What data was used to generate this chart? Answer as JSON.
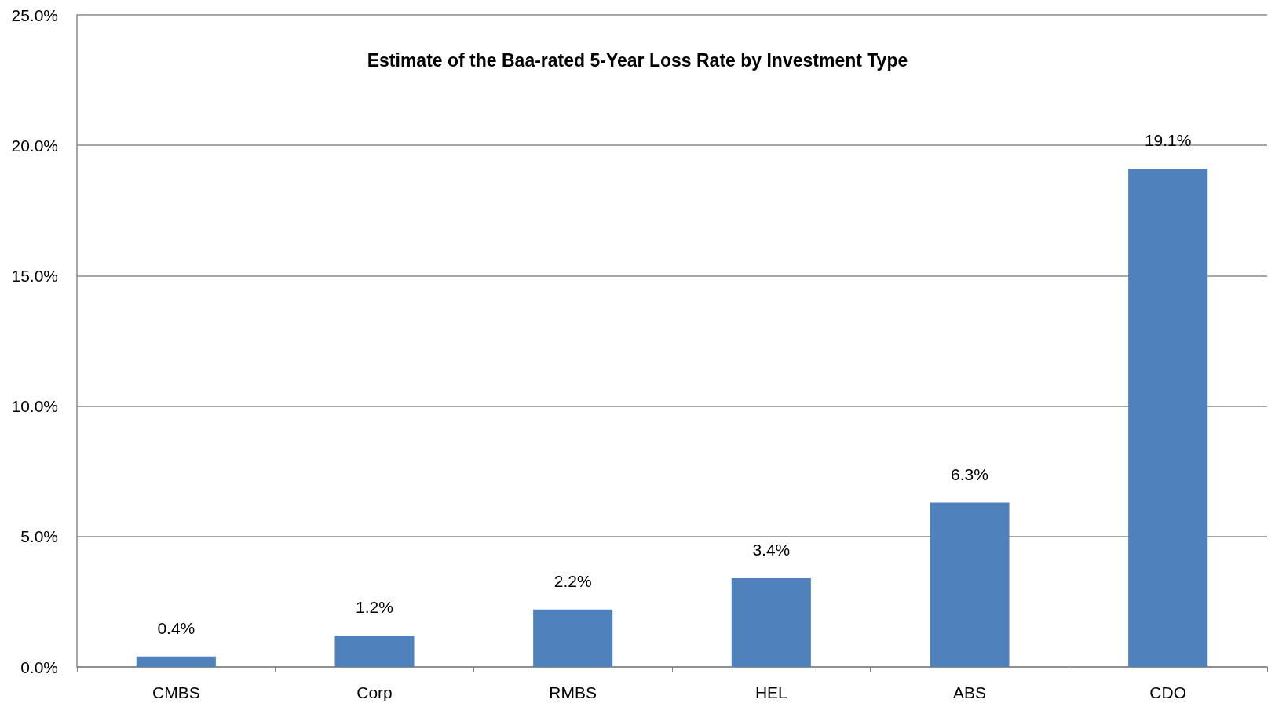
{
  "chart_data": {
    "type": "bar",
    "title": "Estimate of the Baa-rated 5-Year Loss Rate by Investment Type",
    "categories": [
      "CMBS",
      "Corp",
      "RMBS",
      "HEL",
      "ABS",
      "CDO"
    ],
    "values": [
      0.4,
      1.2,
      2.2,
      3.4,
      6.3,
      19.1
    ],
    "value_labels": [
      "0.4%",
      "1.2%",
      "2.2%",
      "3.4%",
      "6.3%",
      "19.1%"
    ],
    "color": "#4f81bd",
    "ylim": [
      0,
      25
    ],
    "yticks": [
      {
        "value": 0,
        "label": "0.0%"
      },
      {
        "value": 5,
        "label": "5.0%"
      },
      {
        "value": 10,
        "label": "10.0%"
      },
      {
        "value": 15,
        "label": "15.0%"
      },
      {
        "value": 20,
        "label": "20.0%"
      },
      {
        "value": 25,
        "label": "25.0%"
      }
    ],
    "grid": "y"
  }
}
